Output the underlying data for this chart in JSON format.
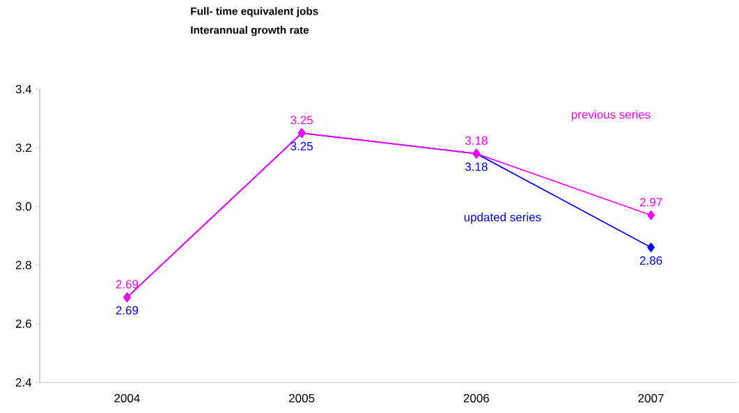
{
  "chart_data": {
    "type": "line",
    "title": "Full- time equivalent jobs",
    "subtitle": "Interannual growth rate",
    "categories": [
      "2004",
      "2005",
      "2006",
      "2007"
    ],
    "series": [
      {
        "name": "updated series",
        "color": "#0000ff",
        "values": [
          2.69,
          3.25,
          3.18,
          2.86
        ],
        "value_labels": [
          "2.69",
          "3.25",
          "3.18",
          "2.86"
        ]
      },
      {
        "name": "previous series",
        "color": "#ff00ff",
        "values": [
          2.69,
          3.25,
          3.18,
          2.97
        ],
        "value_labels": [
          "2.69",
          "3.25",
          "3.18",
          "2.97"
        ]
      }
    ],
    "ylim": [
      2.4,
      3.4
    ],
    "yticks": [
      2.4,
      2.6,
      2.8,
      {
        "value": 3.0,
        "label": "3.0"
      },
      3.2,
      3.4
    ],
    "marker": "diamond",
    "line_style": "solid",
    "grid": false,
    "legend": false
  }
}
